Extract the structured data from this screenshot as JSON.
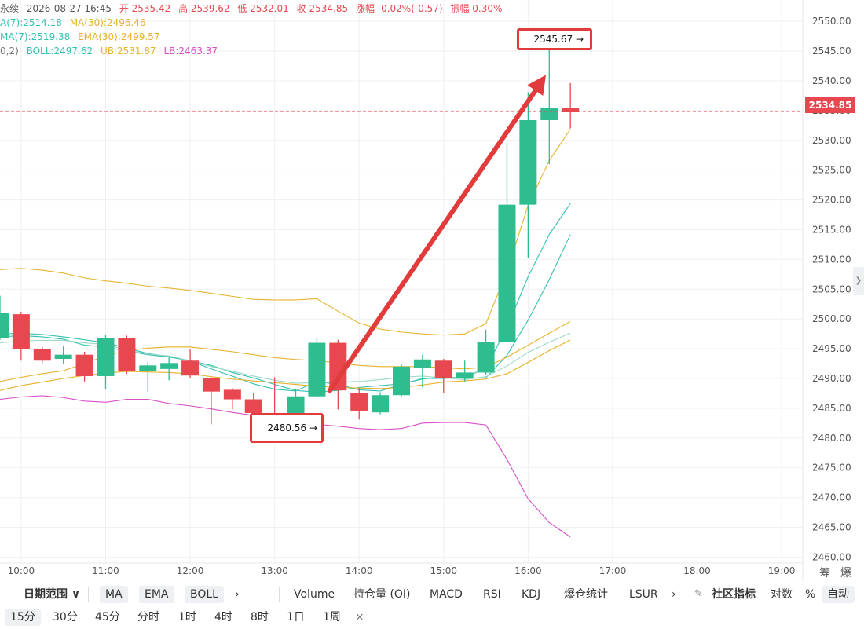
{
  "info": {
    "line1": [
      "永续",
      "2026-08-27 16:45",
      "开 2535.42",
      "高 2539.62",
      "低 2532.01",
      "收 2534.85",
      "涨幅 -0.02%(-0.57)",
      "振幅 0.30%"
    ],
    "line2": [
      "A(7):2514.18",
      "MA(30):2496.46"
    ],
    "line3": [
      "MA(7):2519.38",
      "EMA(30):2499.57"
    ],
    "line4": [
      "0,2)",
      "BOLL:2497.62",
      "UB:2531.87",
      "LB:2463.37"
    ]
  },
  "colors": {
    "up": "#2ebd8f",
    "down": "#e8474f",
    "ma7": "#33c2b0",
    "ma30": "#e8b128",
    "ub": "#e6b52e",
    "lb": "#d94fc8",
    "boll": "#9ed9c9",
    "grid": "#eef0f3",
    "annotation": "#e23b3b"
  },
  "chart_data": {
    "type": "candlestick",
    "x_range_hours": [
      9.75,
      19.25
    ],
    "ylim": [
      2459,
      2552
    ],
    "yticks": [
      2460,
      2465,
      2470,
      2475,
      2480,
      2485,
      2490,
      2495,
      2500,
      2505,
      2510,
      2515,
      2520,
      2525,
      2530,
      2535,
      2540,
      2545,
      2550
    ],
    "ytick_labels": [
      "2460.00",
      "2465.00",
      "2470.00",
      "2475.00",
      "2480.00",
      "2485.00",
      "2490.00",
      "2495.00",
      "2500.00",
      "2505.00",
      "2510.00",
      "2515.00",
      "2520.00",
      "2525.00",
      "2530.00",
      "2535.00",
      "2540.00",
      "2545.00",
      "2550.00"
    ],
    "xticks": [
      "10:00",
      "11:00",
      "12:00",
      "13:00",
      "14:00",
      "15:00",
      "16:00",
      "17:00",
      "18:00",
      "19:00"
    ],
    "candles": [
      {
        "t": "9:45",
        "o": 2496.8,
        "h": 2503.9,
        "l": 2496.5,
        "c": 2501.0
      },
      {
        "t": "10:00",
        "o": 2500.8,
        "h": 2501.2,
        "l": 2493.0,
        "c": 2495.0
      },
      {
        "t": "10:15",
        "o": 2495.0,
        "h": 2495.3,
        "l": 2492.6,
        "c": 2493.0
      },
      {
        "t": "10:30",
        "o": 2493.3,
        "h": 2495.5,
        "l": 2492.5,
        "c": 2494.0
      },
      {
        "t": "10:45",
        "o": 2494.0,
        "h": 2494.5,
        "l": 2489.5,
        "c": 2490.4
      },
      {
        "t": "11:00",
        "o": 2490.4,
        "h": 2497.3,
        "l": 2488.2,
        "c": 2496.8
      },
      {
        "t": "11:15",
        "o": 2496.8,
        "h": 2497.2,
        "l": 2490.8,
        "c": 2491.2
      },
      {
        "t": "11:30",
        "o": 2491.2,
        "h": 2492.8,
        "l": 2487.8,
        "c": 2492.2
      },
      {
        "t": "11:45",
        "o": 2491.6,
        "h": 2493.5,
        "l": 2489.7,
        "c": 2492.6
      },
      {
        "t": "12:00",
        "o": 2493.0,
        "h": 2495.0,
        "l": 2490.0,
        "c": 2490.5
      },
      {
        "t": "12:15",
        "o": 2490.0,
        "h": 2490.2,
        "l": 2482.3,
        "c": 2487.8
      },
      {
        "t": "12:30",
        "o": 2488.1,
        "h": 2488.4,
        "l": 2484.8,
        "c": 2486.5
      },
      {
        "t": "12:45",
        "o": 2486.5,
        "h": 2487.6,
        "l": 2483.3,
        "c": 2484.2
      },
      {
        "t": "13:00",
        "o": 2484.2,
        "h": 2490.2,
        "l": 2482.8,
        "c": 2484.0
      },
      {
        "t": "13:15",
        "o": 2484.0,
        "h": 2488.3,
        "l": 2480.56,
        "c": 2487.0
      },
      {
        "t": "13:30",
        "o": 2487.0,
        "h": 2496.9,
        "l": 2486.8,
        "c": 2496.0
      },
      {
        "t": "13:45",
        "o": 2496.0,
        "h": 2496.5,
        "l": 2484.8,
        "c": 2488.0
      },
      {
        "t": "14:00",
        "o": 2487.5,
        "h": 2488.4,
        "l": 2483.1,
        "c": 2484.6
      },
      {
        "t": "14:15",
        "o": 2484.3,
        "h": 2487.7,
        "l": 2484.0,
        "c": 2487.2
      },
      {
        "t": "14:30",
        "o": 2487.2,
        "h": 2492.5,
        "l": 2487.0,
        "c": 2492.0
      },
      {
        "t": "14:45",
        "o": 2491.8,
        "h": 2494.0,
        "l": 2488.5,
        "c": 2493.2
      },
      {
        "t": "15:00",
        "o": 2493.0,
        "h": 2493.3,
        "l": 2487.5,
        "c": 2490.0
      },
      {
        "t": "15:15",
        "o": 2490.0,
        "h": 2493.0,
        "l": 2489.5,
        "c": 2491.0
      },
      {
        "t": "15:30",
        "o": 2491.0,
        "h": 2498.2,
        "l": 2490.7,
        "c": 2496.2
      },
      {
        "t": "15:45",
        "o": 2496.2,
        "h": 2529.7,
        "l": 2496.1,
        "c": 2519.2
      },
      {
        "t": "16:00",
        "o": 2519.2,
        "h": 2538.1,
        "l": 2510.2,
        "c": 2533.4
      },
      {
        "t": "16:15",
        "o": 2533.4,
        "h": 2545.67,
        "l": 2526.0,
        "c": 2535.4
      },
      {
        "t": "16:30",
        "o": 2535.42,
        "h": 2539.62,
        "l": 2532.01,
        "c": 2534.85
      }
    ],
    "series": [
      {
        "name": "MA(7)",
        "values": [
          2497.5,
          2497.6,
          2497.4,
          2497.0,
          2496.5,
          2496.0,
          2495.1,
          2494.2,
          2493.7,
          2493.0,
          2492.2,
          2491.0,
          2490.1,
          2489.0,
          2488.0,
          2487.7,
          2488.0,
          2488.5,
          2488.8,
          2489.1,
          2489.9,
          2490.3,
          2490.0,
          2490.1,
          2493.9,
          2499.8,
          2506.6,
          2514.18
        ]
      },
      {
        "name": "EMA(7)",
        "values": [
          2497.0,
          2497.2,
          2497.0,
          2496.6,
          2495.6,
          2495.3,
          2494.6,
          2494.0,
          2493.6,
          2493.0,
          2491.6,
          2490.4,
          2489.1,
          2488.2,
          2487.9,
          2489.5,
          2489.0,
          2488.1,
          2487.9,
          2489.0,
          2490.0,
          2490.0,
          2490.2,
          2491.7,
          2498.6,
          2507.1,
          2514.2,
          2519.38
        ]
      },
      {
        "name": "MA(30)",
        "values": [
          2488.0,
          2488.8,
          2489.4,
          2490.0,
          2490.5,
          2490.9,
          2491.2,
          2491.1,
          2491.0,
          2490.8,
          2490.3,
          2489.9,
          2489.6,
          2489.3,
          2489.0,
          2488.7,
          2488.5,
          2488.4,
          2488.3,
          2488.5,
          2488.9,
          2489.4,
          2489.6,
          2489.9,
          2490.8,
          2492.7,
          2494.7,
          2496.46
        ]
      },
      {
        "name": "EMA(30)",
        "values": [
          2489.5,
          2490.2,
          2490.8,
          2491.3,
          2492.5,
          2493.8,
          2494.7,
          2495.1,
          2495.3,
          2495.3,
          2494.9,
          2494.5,
          2494.0,
          2493.5,
          2493.2,
          2493.0,
          2492.6,
          2492.2,
          2492.0,
          2492.0,
          2492.0,
          2491.8,
          2491.6,
          2491.9,
          2493.6,
          2495.6,
          2497.6,
          2499.57
        ]
      },
      {
        "name": "BOLL",
        "values": [
          2496.0,
          2496.3,
          2496.4,
          2496.4,
          2496.0,
          2495.7,
          2494.8,
          2494.1,
          2493.8,
          2493.0,
          2492.0,
          2491.2,
          2490.4,
          2489.7,
          2489.2,
          2489.3,
          2489.4,
          2489.5,
          2489.8,
          2490.2,
          2490.4,
          2490.1,
          2489.8,
          2490.3,
          2492.1,
          2494.4,
          2496.1,
          2497.62
        ]
      },
      {
        "name": "UB",
        "values": [
          2508.3,
          2508.5,
          2508.2,
          2507.7,
          2506.9,
          2506.4,
          2506.0,
          2505.5,
          2505.2,
          2504.8,
          2504.3,
          2503.8,
          2503.3,
          2503.2,
          2503.2,
          2503.4,
          2501.3,
          2499.3,
          2498.3,
          2497.8,
          2497.5,
          2497.3,
          2497.5,
          2499.2,
          2508.0,
          2519.1,
          2526.6,
          2531.87
        ]
      },
      {
        "name": "LB",
        "values": [
          2486.5,
          2486.9,
          2487.1,
          2486.8,
          2486.2,
          2486.0,
          2486.5,
          2486.5,
          2485.8,
          2485.4,
          2484.9,
          2484.3,
          2483.8,
          2483.4,
          2483.0,
          2482.3,
          2482.0,
          2481.6,
          2481.4,
          2481.6,
          2482.5,
          2482.6,
          2482.6,
          2482.2,
          2476.4,
          2469.8,
          2465.8,
          2463.37
        ]
      }
    ],
    "last_price": 2534.85,
    "last_price_label": "2534.85",
    "annotations": {
      "high_label": "2545.67 →",
      "low_label": "2480.56 →",
      "high_value": 2545.67,
      "low_value": 2480.56
    }
  },
  "side_labels": {
    "chip": "筹",
    "liq": "爆"
  },
  "right_tab_glyph": "❯",
  "toolbar1": {
    "date_range": "日期范围 ∨",
    "chips": [
      "MA",
      "EMA",
      "BOLL"
    ],
    "more": "›",
    "indicators": [
      "Volume",
      "持仓量 (OI)",
      "MACD",
      "RSI",
      "KDJ",
      "爆仓统计",
      "LSUR"
    ],
    "more2": "›",
    "community": "社区指标",
    "log": "对数",
    "percent": "%",
    "auto": "自动"
  },
  "toolbar2": {
    "intervals": [
      "15分",
      "30分",
      "45分",
      "分时",
      "1时",
      "4时",
      "8时",
      "1日",
      "1周"
    ],
    "selected": "15分",
    "close": "×"
  }
}
